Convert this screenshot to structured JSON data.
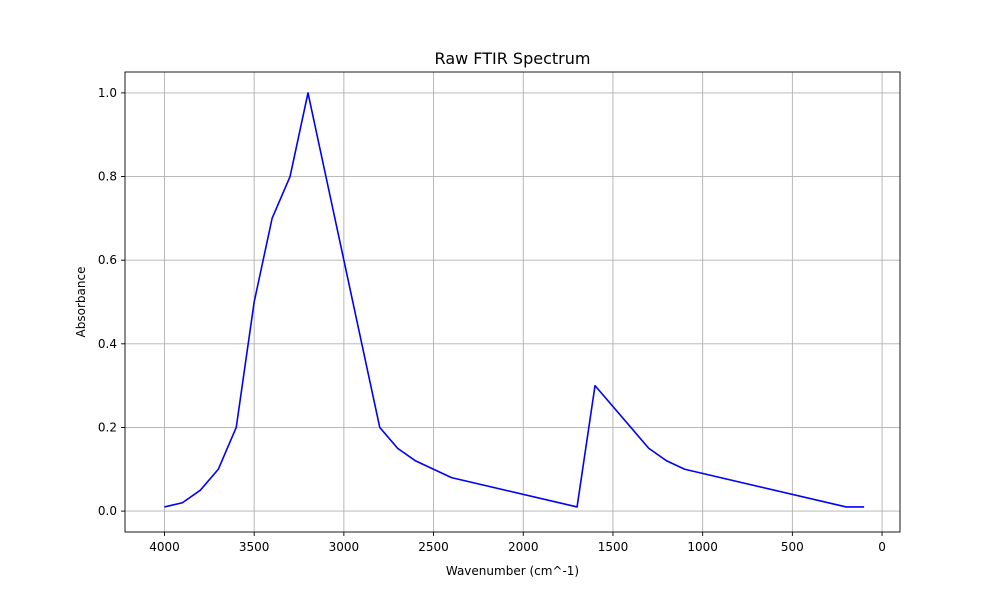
{
  "chart_data": {
    "type": "line",
    "title": "Raw FTIR Spectrum",
    "xlabel": "Wavenumber (cm^-1)",
    "ylabel": "Absorbance",
    "x_reversed": true,
    "xlim": [
      4220,
      -100
    ],
    "ylim": [
      -0.05,
      1.05
    ],
    "x_ticks": [
      4000,
      3500,
      3000,
      2500,
      2000,
      1500,
      1000,
      500,
      0
    ],
    "x_tick_labels": [
      "4000",
      "3500",
      "3000",
      "2500",
      "2000",
      "1500",
      "1000",
      "500",
      "0"
    ],
    "y_ticks": [
      0.0,
      0.2,
      0.4,
      0.6,
      0.8,
      1.0
    ],
    "y_tick_labels": [
      "0.0",
      "0.2",
      "0.4",
      "0.6",
      "0.8",
      "1.0"
    ],
    "grid": true,
    "series": [
      {
        "color": "#0000ff",
        "x": [
          4000,
          3900,
          3800,
          3700,
          3600,
          3500,
          3400,
          3300,
          3200,
          3000,
          2800,
          2700,
          2600,
          2400,
          1700,
          1600,
          1300,
          1200,
          1100,
          200,
          100
        ],
        "y": [
          0.01,
          0.02,
          0.05,
          0.1,
          0.2,
          0.5,
          0.7,
          0.8,
          1.0,
          0.6,
          0.2,
          0.15,
          0.12,
          0.08,
          0.01,
          0.3,
          0.15,
          0.12,
          0.1,
          0.01,
          0.01
        ]
      }
    ]
  }
}
